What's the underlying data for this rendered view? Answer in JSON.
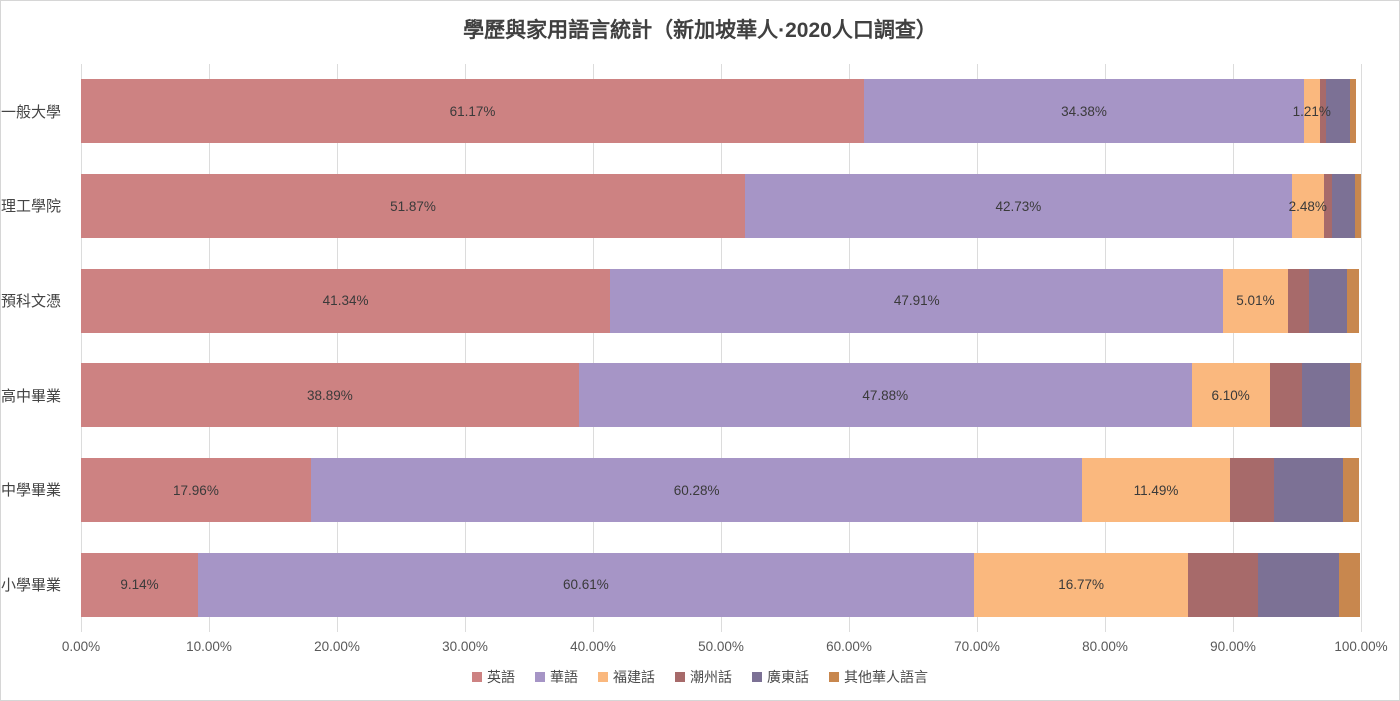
{
  "chart_data": {
    "type": "bar",
    "variant": "horizontal-stacked",
    "title": "學歷與家用語言統計（新加坡華人·2020人口調查）",
    "legend_position": "bottom",
    "grid": true,
    "x_axis": {
      "min": 0,
      "max": 100,
      "tick_step": 10,
      "ticks": [
        "0.00%",
        "10.00%",
        "20.00%",
        "30.00%",
        "40.00%",
        "50.00%",
        "60.00%",
        "70.00%",
        "80.00%",
        "90.00%",
        "100.00%"
      ]
    },
    "categories": [
      "一般大學",
      "理工學院",
      "預科文憑",
      "高中畢業",
      "中學畢業",
      "小學畢業"
    ],
    "series_legend": [
      {
        "name": "英語",
        "color": "#cd8282"
      },
      {
        "name": "華語",
        "color": "#a695c6"
      },
      {
        "name": "福建話",
        "color": "#fab87e"
      },
      {
        "name": "潮州話",
        "color": "#a76a6a"
      },
      {
        "name": "廣東話",
        "color": "#7c7195"
      },
      {
        "name": "其他華人語言",
        "color": "#c8874e"
      }
    ],
    "rows": [
      {
        "category": "一般大學",
        "segments": [
          {
            "value": 61.17,
            "label": "61.17%"
          },
          {
            "value": 34.38,
            "label": "34.38%"
          },
          {
            "value": 1.21,
            "label": "1.21%"
          },
          {
            "value": 0.52,
            "label": ""
          },
          {
            "value": 1.85,
            "label": ""
          },
          {
            "value": 0.45,
            "label": ""
          }
        ]
      },
      {
        "category": "理工學院",
        "segments": [
          {
            "value": 51.87,
            "label": "51.87%"
          },
          {
            "value": 42.73,
            "label": "42.73%"
          },
          {
            "value": 2.48,
            "label": "2.48%"
          },
          {
            "value": 0.65,
            "label": ""
          },
          {
            "value": 1.8,
            "label": ""
          },
          {
            "value": 0.45,
            "label": ""
          }
        ]
      },
      {
        "category": "預科文憑",
        "segments": [
          {
            "value": 41.34,
            "label": "41.34%"
          },
          {
            "value": 47.91,
            "label": "47.91%"
          },
          {
            "value": 5.01,
            "label": "5.01%"
          },
          {
            "value": 1.7,
            "label": ""
          },
          {
            "value": 2.95,
            "label": ""
          },
          {
            "value": 0.95,
            "label": ""
          }
        ]
      },
      {
        "category": "高中畢業",
        "segments": [
          {
            "value": 38.89,
            "label": "38.89%"
          },
          {
            "value": 47.88,
            "label": "47.88%"
          },
          {
            "value": 6.1,
            "label": "6.10%"
          },
          {
            "value": 2.5,
            "label": ""
          },
          {
            "value": 3.8,
            "label": ""
          },
          {
            "value": 0.8,
            "label": ""
          }
        ]
      },
      {
        "category": "中學畢業",
        "segments": [
          {
            "value": 17.96,
            "label": "17.96%"
          },
          {
            "value": 60.28,
            "label": "60.28%"
          },
          {
            "value": 11.49,
            "label": "11.49%"
          },
          {
            "value": 3.5,
            "label": ""
          },
          {
            "value": 5.4,
            "label": ""
          },
          {
            "value": 1.2,
            "label": ""
          }
        ]
      },
      {
        "category": "小學畢業",
        "segments": [
          {
            "value": 9.14,
            "label": "9.14%"
          },
          {
            "value": 60.61,
            "label": "60.61%"
          },
          {
            "value": 16.77,
            "label": "16.77%"
          },
          {
            "value": 5.45,
            "label": ""
          },
          {
            "value": 6.3,
            "label": ""
          },
          {
            "value": 1.65,
            "label": ""
          }
        ]
      }
    ]
  }
}
